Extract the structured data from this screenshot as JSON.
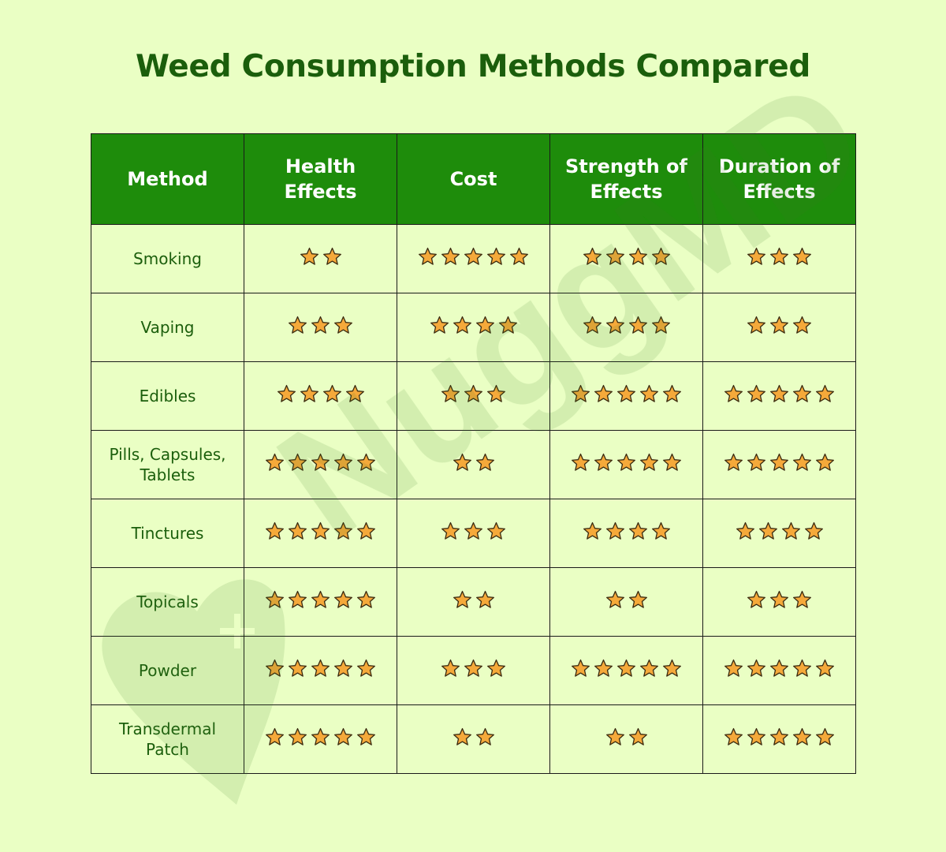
{
  "title": "Weed Consumption Methods Compared",
  "watermark": "NuggMD",
  "colors": {
    "background": "#eaffc4",
    "header_bg": "#1e8c0b",
    "header_text": "#ffffff",
    "title_text": "#1b5e0c",
    "star_fill": "#f5a93a",
    "star_stroke": "#3a2a10"
  },
  "chart_data": {
    "type": "table",
    "title": "Weed Consumption Methods Compared",
    "columns": [
      "Method",
      "Health Effects",
      "Cost",
      "Strength of Effects",
      "Duration of Effects"
    ],
    "rows": [
      {
        "method": "Smoking",
        "ratings": [
          2,
          5,
          4,
          3
        ]
      },
      {
        "method": "Vaping",
        "ratings": [
          3,
          4,
          4,
          3
        ]
      },
      {
        "method": "Edibles",
        "ratings": [
          4,
          3,
          5,
          5
        ]
      },
      {
        "method": "Pills, Capsules, Tablets",
        "ratings": [
          5,
          2,
          5,
          5
        ]
      },
      {
        "method": "Tinctures",
        "ratings": [
          5,
          3,
          4,
          4
        ]
      },
      {
        "method": "Topicals",
        "ratings": [
          5,
          2,
          2,
          3
        ]
      },
      {
        "method": "Powder",
        "ratings": [
          5,
          3,
          5,
          5
        ]
      },
      {
        "method": "Transdermal Patch",
        "ratings": [
          5,
          2,
          2,
          5
        ]
      }
    ]
  }
}
